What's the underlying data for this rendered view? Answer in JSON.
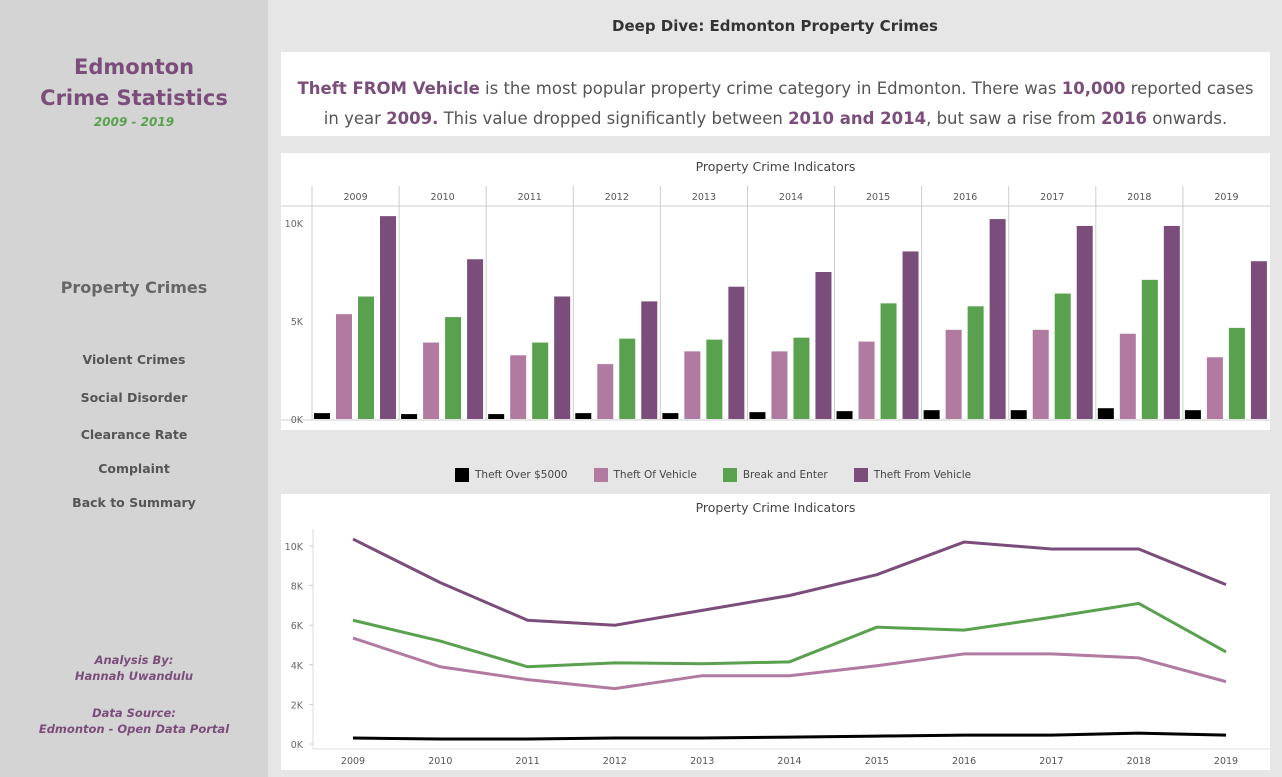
{
  "page_title": "Deep Dive: Edmonton Property Crimes",
  "sidebar": {
    "title_line1": "Edmonton",
    "title_line2": "Crime Statistics",
    "years": "2009 - 2019",
    "nav": [
      {
        "label": "Property Crimes",
        "active": true
      },
      {
        "label": "Violent Crimes"
      },
      {
        "label": "Social Disorder"
      },
      {
        "label": "Clearance Rate"
      },
      {
        "label": "Complaint"
      },
      {
        "label": "Back to Summary"
      }
    ],
    "analysis_label": "Analysis By:",
    "analyst": "Hannah Uwandulu",
    "source_label": "Data Source:",
    "source": "Edmonton - Open Data Portal"
  },
  "summary": {
    "p1": "Theft FROM Vehicle",
    "p2": " is the most popular property crime category in Edmonton. There was ",
    "p3": "10,000",
    "p4": " reported cases in year ",
    "p5": "2009.",
    "p6": " This value dropped significantly between ",
    "p7": "2010 and 2014",
    "p8": ", but saw a rise from ",
    "p9": "2016",
    "p10": " onwards."
  },
  "legend": [
    {
      "label": "Theft Over $5000",
      "color": "#000000"
    },
    {
      "label": "Theft Of Vehicle",
      "color": "#b07aa1"
    },
    {
      "label": "Break and Enter",
      "color": "#59a14f"
    },
    {
      "label": "Theft From Vehicle",
      "color": "#7b4d7a"
    }
  ],
  "chart_data": [
    {
      "type": "bar",
      "title": "Property Crime Indicators",
      "categories": [
        "2009",
        "2010",
        "2011",
        "2012",
        "2013",
        "2014",
        "2015",
        "2016",
        "2017",
        "2018",
        "2019"
      ],
      "yticks": [
        "0K",
        "5K",
        "10K"
      ],
      "ylim": [
        0,
        11000
      ],
      "series": [
        {
          "name": "Theft Over $5000",
          "color": "#000000",
          "values": [
            300,
            250,
            250,
            300,
            300,
            350,
            400,
            450,
            450,
            550,
            450
          ]
        },
        {
          "name": "Theft Of Vehicle",
          "color": "#b07aa1",
          "values": [
            5350,
            3900,
            3250,
            2800,
            3450,
            3450,
            3950,
            4550,
            4550,
            4350,
            3150
          ]
        },
        {
          "name": "Break and Enter",
          "color": "#59a14f",
          "values": [
            6250,
            5200,
            3900,
            4100,
            4050,
            4150,
            5900,
            5750,
            6400,
            7100,
            4650
          ]
        },
        {
          "name": "Theft From Vehicle",
          "color": "#7b4d7a",
          "values": [
            10350,
            8150,
            6250,
            6000,
            6750,
            7500,
            8550,
            10200,
            9850,
            9850,
            8050
          ]
        }
      ]
    },
    {
      "type": "line",
      "title": "Property Crime Indicators",
      "x": [
        "2009",
        "2010",
        "2011",
        "2012",
        "2013",
        "2014",
        "2015",
        "2016",
        "2017",
        "2018",
        "2019"
      ],
      "yticks": [
        "0K",
        "2K",
        "4K",
        "6K",
        "8K",
        "10K"
      ],
      "ylim": [
        0,
        11000
      ],
      "series": [
        {
          "name": "Theft Over $5000",
          "color": "#000000",
          "values": [
            300,
            250,
            250,
            300,
            300,
            350,
            400,
            450,
            450,
            550,
            450
          ]
        },
        {
          "name": "Theft Of Vehicle",
          "color": "#b07aa1",
          "values": [
            5350,
            3900,
            3250,
            2800,
            3450,
            3450,
            3950,
            4550,
            4550,
            4350,
            3150
          ]
        },
        {
          "name": "Break and Enter",
          "color": "#59a14f",
          "values": [
            6250,
            5200,
            3900,
            4100,
            4050,
            4150,
            5900,
            5750,
            6400,
            7100,
            4650
          ]
        },
        {
          "name": "Theft From Vehicle",
          "color": "#7b4d7a",
          "values": [
            10350,
            8150,
            6250,
            6000,
            6750,
            7500,
            8550,
            10200,
            9850,
            9850,
            8050
          ]
        }
      ]
    }
  ]
}
